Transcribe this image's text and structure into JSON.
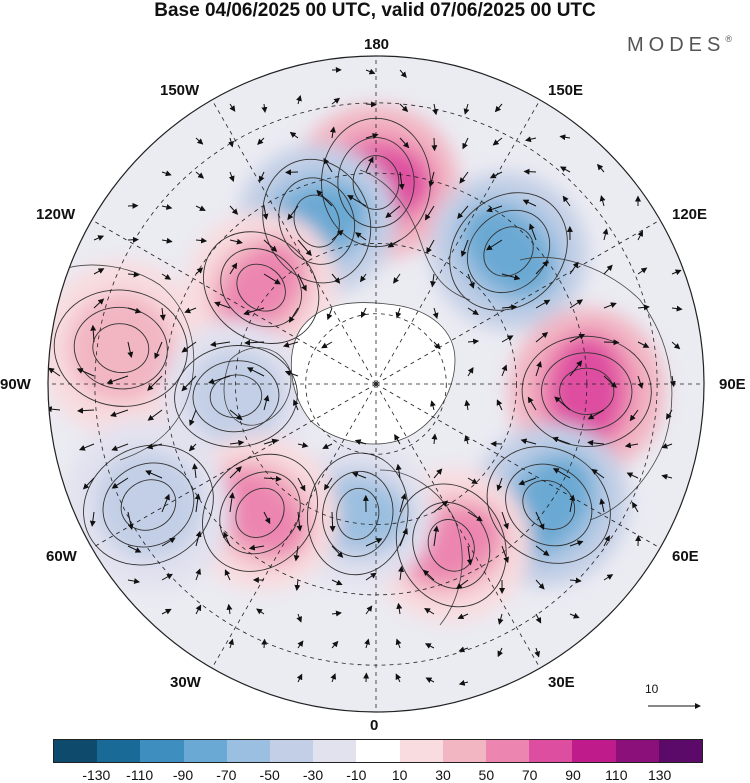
{
  "title": "Base 04/06/2025 00 UTC, valid 07/06/2025 00 UTC",
  "brand": "MODES",
  "brand_mark": "®",
  "longitude_labels": {
    "top": "180",
    "bottom": "0",
    "left": "90W",
    "right": "90E",
    "w150": "150W",
    "w120": "120W",
    "w60": "60W",
    "w30": "30W",
    "e150": "150E",
    "e120": "120E",
    "e60": "60E",
    "e30": "30E"
  },
  "wind_scale_label": "10",
  "colorbar": {
    "colors": [
      "#0e4a6b",
      "#1a6a98",
      "#3e8fc0",
      "#6aa9d3",
      "#9bbfe0",
      "#c3cfe6",
      "#e2e2ef",
      "#ffffff",
      "#f8dcdf",
      "#f2b6c3",
      "#ec86b0",
      "#de4ea0",
      "#c01b8a",
      "#8c1079",
      "#5b0a6a"
    ],
    "tick_labels": [
      "-130",
      "-110",
      "-90",
      "-70",
      "-50",
      "-30",
      "-10",
      "10",
      "30",
      "50",
      "70",
      "90",
      "110",
      "130"
    ]
  },
  "anomaly_centers": [
    {
      "sign": "positive",
      "level": 70,
      "lon_deg": 180,
      "lat_deg": 47
    },
    {
      "sign": "negative",
      "level": -70,
      "lon_deg": 135,
      "lat_deg": 50
    },
    {
      "sign": "negative",
      "level": -70,
      "lon_deg": -160,
      "lat_deg": 53
    },
    {
      "sign": "positive",
      "level": 50,
      "lon_deg": -130,
      "lat_deg": 58
    },
    {
      "sign": "positive",
      "level": 30,
      "lon_deg": -98,
      "lat_deg": 35
    },
    {
      "sign": "negative",
      "level": -30,
      "lon_deg": -85,
      "lat_deg": 60
    },
    {
      "sign": "positive",
      "level": 70,
      "lon_deg": 88,
      "lat_deg": 45
    },
    {
      "sign": "negative",
      "level": -70,
      "lon_deg": 55,
      "lat_deg": 45
    },
    {
      "sign": "positive",
      "level": 50,
      "lon_deg": 25,
      "lat_deg": 52
    },
    {
      "sign": "negative",
      "level": -50,
      "lon_deg": -8,
      "lat_deg": 62
    },
    {
      "sign": "positive",
      "level": 50,
      "lon_deg": -42,
      "lat_deg": 53
    },
    {
      "sign": "negative",
      "level": -30,
      "lon_deg": -62,
      "lat_deg": 35
    }
  ]
}
